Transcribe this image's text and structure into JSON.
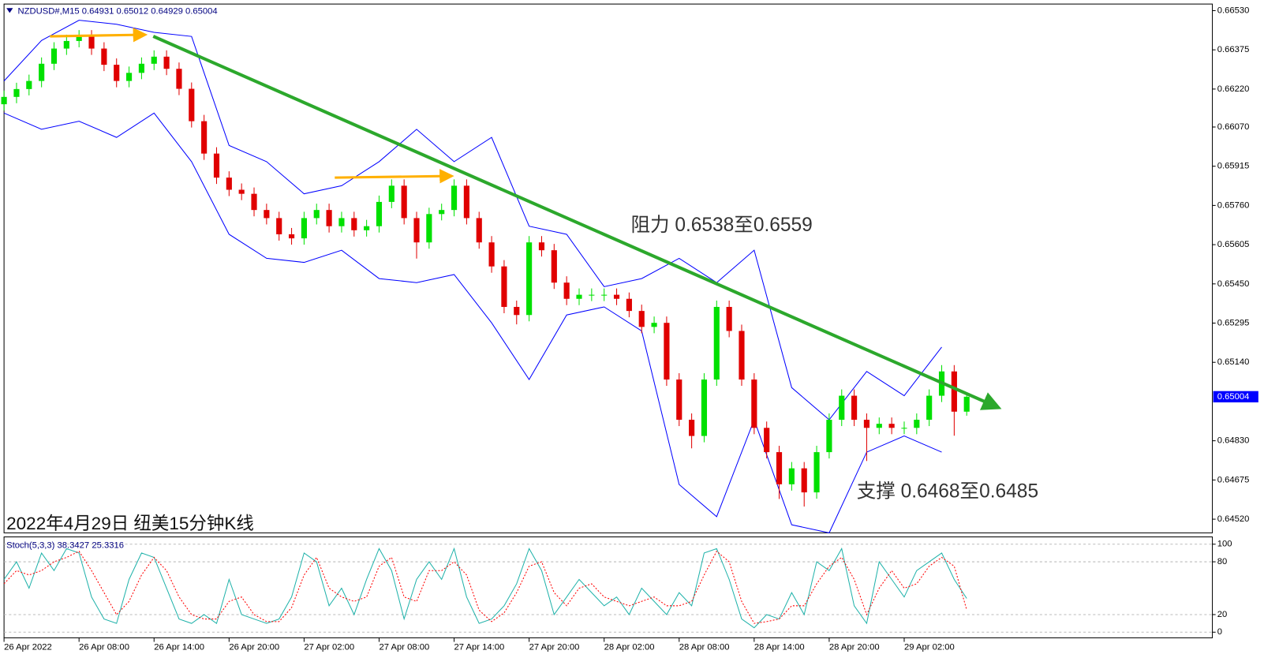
{
  "chart_data": [
    {
      "type": "candlestick",
      "header": "NZDUSD#,M15  0.64931 0.65012 0.64929 0.65004",
      "title": "2022年4月29日 纽美15分钟K线",
      "annotations": [
        "阻力 0.6538至0.6559",
        "支撑 0.6468至0.6485"
      ],
      "up_color": "#00e000",
      "down_color": "#e00000",
      "x": [
        0,
        1,
        2,
        3,
        4,
        5,
        6,
        7,
        8,
        9,
        10,
        11,
        12,
        13,
        14,
        15,
        16,
        17,
        18,
        19,
        20,
        21,
        22,
        23,
        24,
        25,
        26,
        27,
        28,
        29,
        30,
        31,
        32,
        33,
        34,
        35,
        36,
        37,
        38,
        39,
        40,
        41,
        42,
        43,
        44,
        45,
        46,
        47,
        48,
        49,
        50,
        51,
        52,
        53,
        54,
        55,
        56,
        57,
        58,
        59,
        60,
        61,
        62,
        63,
        64,
        65,
        66,
        67,
        68,
        69,
        70,
        71,
        72,
        73,
        74,
        75,
        76,
        77
      ],
      "open": [
        0.6616,
        0.66189,
        0.6622,
        0.66252,
        0.6632,
        0.6638,
        0.6641,
        0.66428,
        0.6638,
        0.66316,
        0.66252,
        0.66284,
        0.6632,
        0.66348,
        0.663,
        0.66221,
        0.66093,
        0.65965,
        0.6587,
        0.65822,
        0.65806,
        0.65742,
        0.6571,
        0.65646,
        0.6563,
        0.6571,
        0.65742,
        0.65678,
        0.6571,
        0.65662,
        0.65678,
        0.65774,
        0.65838,
        0.6571,
        0.65614,
        0.65726,
        0.65742,
        0.65838,
        0.6571,
        0.65614,
        0.65519,
        0.65359,
        0.65327,
        0.65614,
        0.65583,
        0.65455,
        0.65391,
        0.65407,
        0.65407,
        0.65407,
        0.65391,
        0.65343,
        0.6528,
        0.65296,
        0.65072,
        0.64913,
        0.64849,
        0.65072,
        0.65359,
        0.65264,
        0.65072,
        0.64881,
        0.64785,
        0.64658,
        0.64721,
        0.64626,
        0.64785,
        0.64913,
        0.65008,
        0.64913,
        0.64881,
        0.64897,
        0.64881,
        0.64881,
        0.64913,
        0.65008,
        0.65104,
        0.64945
      ],
      "high": [
        0.66214,
        0.66245,
        0.66277,
        0.66345,
        0.66405,
        0.66435,
        0.66453,
        0.66453,
        0.66405,
        0.66341,
        0.66309,
        0.66345,
        0.66373,
        0.66373,
        0.66325,
        0.66246,
        0.66118,
        0.6599,
        0.65895,
        0.65847,
        0.65831,
        0.65767,
        0.65735,
        0.65671,
        0.65735,
        0.65767,
        0.65767,
        0.65735,
        0.65735,
        0.65703,
        0.65799,
        0.65863,
        0.65863,
        0.65735,
        0.65751,
        0.65767,
        0.65863,
        0.65863,
        0.65735,
        0.65639,
        0.65544,
        0.65384,
        0.65639,
        0.65639,
        0.65608,
        0.6548,
        0.65432,
        0.65432,
        0.65432,
        0.65432,
        0.65416,
        0.65368,
        0.65321,
        0.65321,
        0.65097,
        0.64938,
        0.65097,
        0.65384,
        0.65384,
        0.65289,
        0.65097,
        0.64906,
        0.6481,
        0.64746,
        0.64746,
        0.6481,
        0.64938,
        0.65033,
        0.65033,
        0.64938,
        0.64922,
        0.64922,
        0.64906,
        0.64938,
        0.65033,
        0.65129,
        0.65129,
        0.65012
      ],
      "low": [
        0.66135,
        0.66164,
        0.66195,
        0.66227,
        0.66295,
        0.66355,
        0.66385,
        0.66355,
        0.66291,
        0.66227,
        0.66227,
        0.66259,
        0.66295,
        0.66275,
        0.66196,
        0.66068,
        0.6594,
        0.65845,
        0.65797,
        0.65781,
        0.65717,
        0.65685,
        0.65621,
        0.65605,
        0.65605,
        0.65685,
        0.65653,
        0.65653,
        0.65637,
        0.65637,
        0.65653,
        0.65749,
        0.65685,
        0.6555,
        0.65589,
        0.65701,
        0.65717,
        0.65685,
        0.65589,
        0.65494,
        0.65334,
        0.6529,
        0.65302,
        0.65558,
        0.6543,
        0.65366,
        0.65366,
        0.65382,
        0.65382,
        0.65366,
        0.65318,
        0.65255,
        0.65255,
        0.65047,
        0.64888,
        0.648,
        0.64824,
        0.65047,
        0.65239,
        0.65047,
        0.64856,
        0.6476,
        0.646,
        0.64633,
        0.6457,
        0.64601,
        0.6476,
        0.64888,
        0.64888,
        0.6475,
        0.64856,
        0.64856,
        0.64856,
        0.64856,
        0.64888,
        0.64983,
        0.6485,
        0.64929
      ],
      "close": [
        0.66189,
        0.6622,
        0.66252,
        0.6632,
        0.6638,
        0.6641,
        0.66428,
        0.6638,
        0.66316,
        0.66252,
        0.66284,
        0.6632,
        0.66348,
        0.663,
        0.66221,
        0.66093,
        0.65965,
        0.6587,
        0.65822,
        0.65806,
        0.65742,
        0.6571,
        0.65646,
        0.6563,
        0.6571,
        0.65742,
        0.65678,
        0.6571,
        0.65662,
        0.65678,
        0.65774,
        0.65838,
        0.6571,
        0.65614,
        0.65726,
        0.65742,
        0.65838,
        0.6571,
        0.65614,
        0.65519,
        0.65359,
        0.65327,
        0.65614,
        0.65583,
        0.65455,
        0.65391,
        0.65407,
        0.65407,
        0.65407,
        0.65391,
        0.65343,
        0.6528,
        0.65296,
        0.65072,
        0.64913,
        0.64849,
        0.65072,
        0.65359,
        0.65264,
        0.65072,
        0.64881,
        0.64785,
        0.64658,
        0.64721,
        0.64626,
        0.64785,
        0.64913,
        0.65008,
        0.64913,
        0.64881,
        0.64897,
        0.64881,
        0.64881,
        0.64913,
        0.65008,
        0.65104,
        0.64945,
        0.65004
      ],
      "bollinger": {
        "color": "#0000ff",
        "x": [
          0,
          3,
          6,
          9,
          12,
          15,
          18,
          21,
          24,
          27,
          30,
          33,
          36,
          39,
          42,
          45,
          48,
          51,
          54,
          57,
          60,
          63,
          66,
          69,
          72,
          75
        ],
        "upper": [
          0.66252,
          0.66412,
          0.66492,
          0.66476,
          0.66444,
          0.66428,
          0.65997,
          0.65933,
          0.65806,
          0.65838,
          0.65933,
          0.66061,
          0.65933,
          0.66029,
          0.65678,
          0.65646,
          0.65439,
          0.65471,
          0.65551,
          0.65455,
          0.65583,
          0.6504,
          0.64913,
          0.65104,
          0.65008,
          0.652
        ],
        "lower": [
          0.66125,
          0.66061,
          0.66093,
          0.66029,
          0.66125,
          0.65933,
          0.65646,
          0.65551,
          0.65535,
          0.65583,
          0.65471,
          0.65455,
          0.65487,
          0.65296,
          0.65072,
          0.65327,
          0.65359,
          0.65264,
          0.64657,
          0.6453,
          0.64913,
          0.64498,
          0.64466,
          0.64785,
          0.64849,
          0.64785
        ]
      },
      "last_price": {
        "value": 0.65004,
        "label": "0.65004"
      },
      "last_price_color": "#0000ff",
      "xlim": [
        0,
        96.65
      ],
      "ylim": [
        0.64466,
        0.66556
      ],
      "xticks": [
        {
          "value": 0,
          "label": "26 Apr 2022"
        },
        {
          "value": 6,
          "label": "26 Apr 08:00"
        },
        {
          "value": 12,
          "label": "26 Apr 14:00"
        },
        {
          "value": 18,
          "label": "26 Apr 20:00"
        },
        {
          "value": 24,
          "label": "27 Apr 02:00"
        },
        {
          "value": 30,
          "label": "27 Apr 08:00"
        },
        {
          "value": 36,
          "label": "27 Apr 14:00"
        },
        {
          "value": 42,
          "label": "27 Apr 20:00"
        },
        {
          "value": 48,
          "label": "28 Apr 02:00"
        },
        {
          "value": 54,
          "label": "28 Apr 08:00"
        },
        {
          "value": 60,
          "label": "28 Apr 14:00"
        },
        {
          "value": 66,
          "label": "28 Apr 20:00"
        },
        {
          "value": 72,
          "label": "29 Apr 02:00"
        }
      ],
      "yticks": [
        {
          "value": 0.6653,
          "label": "0.66530"
        },
        0.66375,
        {
          "value": 0.6622,
          "label": "0.66220"
        },
        {
          "value": 0.6607,
          "label": "0.66070"
        },
        0.65915,
        {
          "value": 0.6576,
          "label": "0.65760"
        },
        0.65605,
        {
          "value": 0.6545,
          "label": "0.65450"
        },
        0.65295,
        {
          "value": 0.6514,
          "label": "0.65140"
        },
        {
          "value": 0.6483,
          "label": "0.64830"
        },
        0.64675,
        {
          "value": 0.6452,
          "label": "0.64520"
        }
      ]
    },
    {
      "type": "line",
      "title": "Stoch(5,3,3) 38.3427 25.3316",
      "x": [
        0,
        1,
        2,
        3,
        4,
        5,
        6,
        7,
        8,
        9,
        10,
        11,
        12,
        13,
        14,
        15,
        16,
        17,
        18,
        19,
        20,
        21,
        22,
        23,
        24,
        25,
        26,
        27,
        28,
        29,
        30,
        31,
        32,
        33,
        34,
        35,
        36,
        37,
        38,
        39,
        40,
        41,
        42,
        43,
        44,
        45,
        46,
        47,
        48,
        49,
        50,
        51,
        52,
        53,
        54,
        55,
        56,
        57,
        58,
        59,
        60,
        61,
        62,
        63,
        64,
        65,
        66,
        67,
        68,
        69,
        70,
        71,
        72,
        73,
        74,
        75,
        76,
        77
      ],
      "series": [
        {
          "color": "#20b2aa",
          "dashed": false,
          "values": [
            60,
            80,
            50,
            90,
            70,
            95,
            90,
            40,
            15,
            10,
            60,
            90,
            85,
            50,
            15,
            10,
            20,
            10,
            60,
            20,
            15,
            10,
            15,
            40,
            90,
            80,
            30,
            50,
            20,
            60,
            95,
            70,
            15,
            60,
            80,
            60,
            95,
            40,
            10,
            15,
            30,
            55,
            95,
            70,
            20,
            40,
            60,
            45,
            30,
            40,
            20,
            50,
            35,
            20,
            45,
            30,
            90,
            95,
            60,
            15,
            5,
            20,
            15,
            45,
            20,
            80,
            70,
            95,
            30,
            10,
            80,
            60,
            40,
            70,
            80,
            90,
            60,
            38.3427
          ]
        },
        {
          "color": "#ff0000",
          "dashed": true,
          "values": [
            55,
            70,
            65,
            70,
            80,
            85,
            92,
            70,
            45,
            20,
            35,
            65,
            85,
            70,
            40,
            20,
            15,
            15,
            35,
            40,
            20,
            12,
            12,
            28,
            65,
            85,
            50,
            40,
            35,
            40,
            75,
            85,
            40,
            35,
            70,
            70,
            80,
            65,
            25,
            12,
            22,
            45,
            75,
            80,
            45,
            30,
            50,
            55,
            40,
            35,
            30,
            35,
            40,
            30,
            30,
            35,
            65,
            92,
            80,
            35,
            10,
            12,
            15,
            30,
            30,
            55,
            75,
            85,
            60,
            20,
            50,
            70,
            50,
            55,
            75,
            85,
            75,
            25.3316
          ]
        }
      ],
      "xlim": [
        0,
        96.65
      ],
      "ylim": [
        -6.4,
        108.3
      ],
      "yticks": [
        100,
        80,
        20,
        0
      ],
      "grid": true
    }
  ]
}
